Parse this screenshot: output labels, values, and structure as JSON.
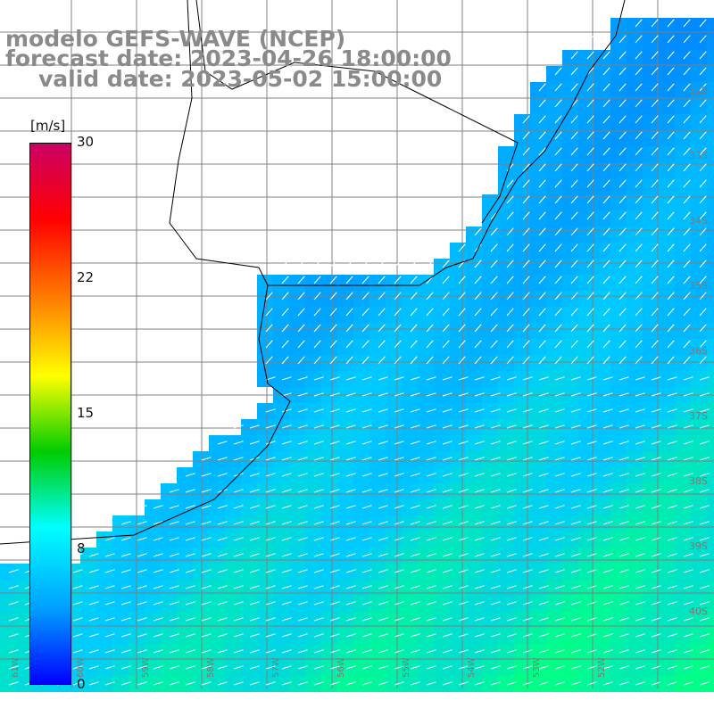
{
  "header": {
    "title_line1": "modelo GEFS-WAVE (NCEP)",
    "title_line2": "forecast date: 2023-04-26 18:00:00",
    "title_line3": "valid date: 2023-05-02 15:00:00"
  },
  "colorbar": {
    "unit": "[m/s]",
    "ticks": [
      "30",
      "22",
      "15",
      "8",
      "0"
    ],
    "tick_values": [
      30,
      22,
      15,
      8,
      0
    ],
    "range": [
      0,
      30
    ],
    "colors": [
      "#0000ff",
      "#00a0ff",
      "#00ffff",
      "#00cc00",
      "#ffff00",
      "#ff8000",
      "#ff0000",
      "#cc0066"
    ]
  },
  "map": {
    "colors": {
      "land": "#ffffff",
      "coast": "#000000",
      "grid": "#808080",
      "arrow": "#ffffff"
    },
    "lat_labels": [
      "32S",
      "33S",
      "34S",
      "35S",
      "36S",
      "37S",
      "38S",
      "39S",
      "40S"
    ],
    "lon_labels": [
      "61W",
      "60W",
      "59W",
      "58W",
      "57W",
      "56W",
      "55W",
      "54W",
      "53W",
      "52W"
    ]
  }
}
